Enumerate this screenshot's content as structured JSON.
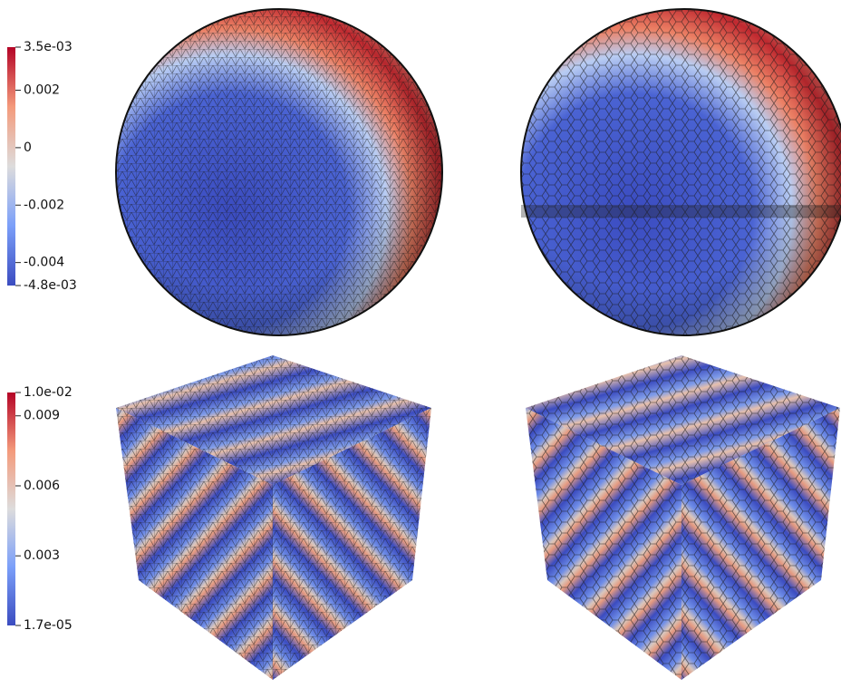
{
  "colorbars": [
    {
      "lim": [
        -0.0048,
        0.0035
      ],
      "ticks": [
        {
          "value": 0.0035,
          "label": "3.5e-03"
        },
        0.002,
        0,
        -0.002,
        -0.004,
        {
          "value": -0.0048,
          "label": "-4.8e-03"
        }
      ]
    },
    {
      "lim": [
        1.7e-05,
        0.01
      ],
      "ticks": [
        {
          "value": 0.01,
          "label": "1.0e-02"
        },
        0.009,
        0.006,
        0.003,
        {
          "value": 1.7e-05,
          "label": "1.7e-05"
        }
      ]
    }
  ]
}
